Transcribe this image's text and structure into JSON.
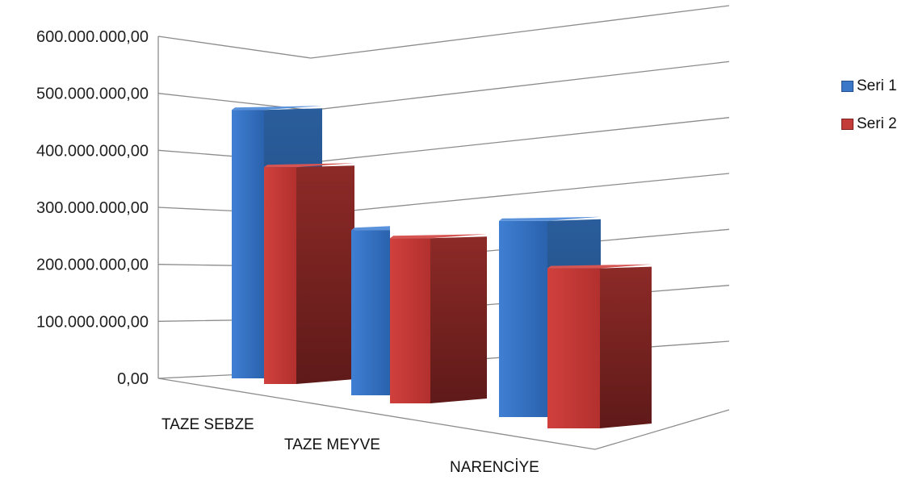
{
  "chart_data": {
    "type": "bar",
    "style": "3d-clustered",
    "categories": [
      "TAZE SEBZE",
      "TAZE MEYVE",
      "NARENCİYE"
    ],
    "series": [
      {
        "name": "Seri 1",
        "values": [
          520000000,
          320000000,
          380000000
        ],
        "color": "#3C78C8"
      },
      {
        "name": "Seri 2",
        "values": [
          420000000,
          320000000,
          310000000
        ],
        "color": "#C43C3A"
      }
    ],
    "ylim": [
      0,
      600000000
    ],
    "yticks": [
      "0,00",
      "100.000.000,00",
      "200.000.000,00",
      "300.000.000,00",
      "400.000.000,00",
      "500.000.000,00",
      "600.000.000,00"
    ],
    "grid": true,
    "legend": "right"
  }
}
